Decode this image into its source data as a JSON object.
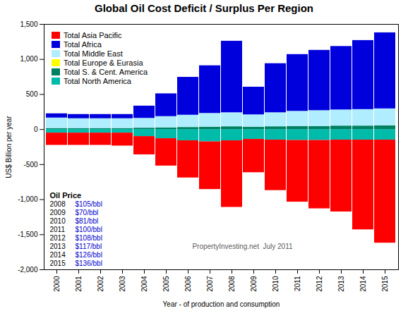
{
  "chart_data": {
    "type": "bar",
    "stacked": true,
    "title": "Global Oil Cost Deficit / Surplus Per Region",
    "ylabel": "US$ Billion per year",
    "xlabel": "Year - of production and consumption",
    "categories": [
      "2000",
      "2001",
      "2002",
      "2003",
      "2004",
      "2005",
      "2006",
      "2007",
      "2008",
      "2009",
      "2010",
      "2011",
      "2012",
      "2013",
      "2014",
      "2015"
    ],
    "series": [
      {
        "name": "Total Asia Pacific",
        "color": "#ff0000",
        "values": [
          -175,
          -175,
          -175,
          -185,
          -260,
          -390,
          -530,
          -680,
          -950,
          -475,
          -720,
          -880,
          -975,
          -1025,
          -1280,
          -1470
        ]
      },
      {
        "name": "Total Africa",
        "color": "#0000dd",
        "values": [
          60,
          60,
          60,
          60,
          175,
          325,
          540,
          680,
          1020,
          395,
          700,
          810,
          860,
          905,
          985,
          1085
        ]
      },
      {
        "name": "Total Middle East",
        "color": "#b0eeff",
        "values": [
          150,
          140,
          140,
          140,
          140,
          160,
          175,
          195,
          200,
          175,
          200,
          215,
          225,
          230,
          235,
          240
        ]
      },
      {
        "name": "Total Europe & Eurasia",
        "color": "#ffff00",
        "values": [
          0,
          0,
          0,
          0,
          0,
          0,
          0,
          0,
          0,
          0,
          0,
          0,
          0,
          0,
          0,
          0
        ]
      },
      {
        "name": "Total S. & Cent. America",
        "color": "#008060",
        "values": [
          15,
          15,
          15,
          15,
          20,
          25,
          30,
          35,
          40,
          35,
          40,
          45,
          45,
          50,
          50,
          55
        ]
      },
      {
        "name": "Total North America",
        "color": "#00bbaa",
        "values": [
          -50,
          -50,
          -50,
          -50,
          -100,
          -130,
          -160,
          -175,
          -160,
          -140,
          -150,
          -155,
          -155,
          -150,
          -150,
          -150
        ]
      }
    ],
    "ylim": [
      -2000,
      1500
    ],
    "yticks": [
      {
        "value": -2000,
        "label": "-2,000"
      },
      {
        "value": -1500,
        "label": "-1,500"
      },
      {
        "value": -1000,
        "label": "-1,000"
      },
      -500,
      0,
      500,
      {
        "value": 1000,
        "label": "1,000"
      },
      {
        "value": 1500,
        "label": "1,500"
      }
    ],
    "grid": false,
    "legend": "upper left",
    "oil_price": {
      "title": "Oil Price",
      "color": "#0000cc",
      "rows": [
        {
          "year": "2008",
          "price": "$105/bbl"
        },
        {
          "year": "2009",
          "price": "$70/bbl"
        },
        {
          "year": "2010",
          "price": "$81/bbl"
        },
        {
          "year": "2011",
          "price": "$100/bbl"
        },
        {
          "year": "2012",
          "price": "$108/bbl"
        },
        {
          "year": "2013",
          "price": "$117/bbl"
        },
        {
          "year": "2014",
          "price": "$126/bbl"
        },
        {
          "year": "2015",
          "price": "$136/bbl"
        }
      ]
    },
    "watermark": "PropertyInvesting.net  July 2011"
  }
}
